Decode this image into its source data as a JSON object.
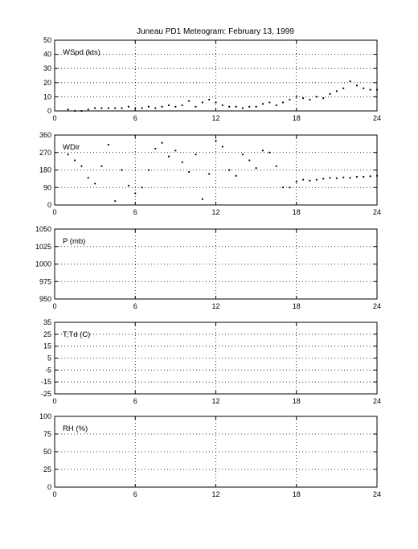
{
  "title": "Juneau PD1 Meteogram:  February 13, 1999",
  "chart_data": [
    {
      "type": "scatter",
      "label": "WSpd (kts)",
      "xlim": [
        0,
        24
      ],
      "ylim": [
        0,
        50
      ],
      "xticks": [
        "0",
        "6",
        "12",
        "18",
        "24"
      ],
      "yticks": [
        "0",
        "10",
        "20",
        "30",
        "40",
        "50"
      ],
      "grid": true,
      "series": [
        {
          "x": [
            1.0,
            1.5,
            2.0,
            2.5,
            3.0,
            3.5,
            4.0,
            4.5,
            5.0,
            5.5,
            6.0,
            6.5,
            7.0,
            7.5,
            8.0,
            8.5,
            9.0,
            9.5,
            10.0,
            10.5,
            11.0,
            11.5,
            12.0,
            12.5,
            13.0,
            13.5,
            14.0,
            14.5,
            15.0,
            15.5,
            16.0,
            16.5,
            17.0,
            17.5,
            18.0,
            18.5,
            19.0,
            19.5,
            20.0,
            20.5,
            21.0,
            21.5,
            22.0,
            22.5,
            23.0,
            23.5,
            24.0
          ],
          "y": [
            1,
            0,
            0,
            1,
            2,
            2,
            2,
            2,
            2,
            3,
            2,
            2,
            3,
            2,
            3,
            4,
            3,
            4,
            7,
            3,
            6,
            8,
            6,
            4,
            3,
            3,
            2,
            3,
            3,
            5,
            6,
            4,
            6,
            8,
            10,
            9,
            8,
            10,
            9,
            12,
            14,
            16,
            21,
            18,
            16,
            15,
            15
          ]
        }
      ]
    },
    {
      "type": "scatter",
      "label": "WDir",
      "xlim": [
        0,
        24
      ],
      "ylim": [
        0,
        360
      ],
      "xticks": [
        "0",
        "6",
        "12",
        "18",
        "24"
      ],
      "yticks": [
        "0",
        "90",
        "180",
        "270",
        "360"
      ],
      "grid": true,
      "series": [
        {
          "x": [
            1.0,
            1.5,
            2.0,
            2.5,
            3.0,
            3.5,
            4.0,
            4.5,
            5.0,
            5.5,
            6.0,
            6.5,
            7.0,
            7.5,
            8.0,
            8.5,
            9.0,
            9.5,
            10.0,
            10.5,
            11.0,
            11.5,
            12.0,
            12.5,
            13.0,
            13.5,
            14.0,
            14.5,
            15.0,
            15.5,
            16.0,
            16.5,
            17.0,
            17.5,
            18.0,
            18.5,
            19.0,
            19.5,
            20.0,
            20.5,
            21.0,
            21.5,
            22.0,
            22.5,
            23.0,
            23.5,
            24.0
          ],
          "y": [
            260,
            230,
            200,
            140,
            110,
            200,
            310,
            20,
            180,
            100,
            60,
            90,
            180,
            290,
            320,
            250,
            280,
            220,
            170,
            260,
            30,
            160,
            330,
            300,
            180,
            150,
            260,
            230,
            190,
            280,
            270,
            200,
            90,
            90,
            120,
            130,
            125,
            130,
            135,
            140,
            138,
            142,
            140,
            145,
            145,
            148,
            150
          ]
        }
      ]
    },
    {
      "type": "scatter",
      "label": "P (mb)",
      "xlim": [
        0,
        24
      ],
      "ylim": [
        950,
        1050
      ],
      "xticks": [
        "0",
        "6",
        "12",
        "18",
        "24"
      ],
      "yticks": [
        "950",
        "975",
        "1000",
        "1025",
        "1050"
      ],
      "grid": true,
      "series": []
    },
    {
      "type": "scatter",
      "label": "T,Td (C)",
      "xlim": [
        0,
        24
      ],
      "ylim": [
        -25,
        35
      ],
      "xticks": [
        "0",
        "6",
        "12",
        "18",
        "24"
      ],
      "yticks": [
        "-25",
        "-15",
        "-5",
        "5",
        "15",
        "25",
        "35"
      ],
      "grid": true,
      "series": []
    },
    {
      "type": "scatter",
      "label": "RH (%)",
      "xlim": [
        0,
        24
      ],
      "ylim": [
        0,
        100
      ],
      "xticks": [
        "0",
        "6",
        "12",
        "18",
        "24"
      ],
      "yticks": [
        "0",
        "25",
        "50",
        "75",
        "100"
      ],
      "grid": true,
      "series": []
    }
  ]
}
